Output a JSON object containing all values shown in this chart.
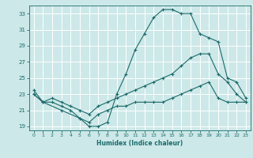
{
  "xlabel": "Humidex (Indice chaleur)",
  "xlim": [
    -0.5,
    23.5
  ],
  "ylim": [
    18.5,
    34.0
  ],
  "yticks": [
    19,
    21,
    23,
    25,
    27,
    29,
    31,
    33
  ],
  "xticks": [
    0,
    1,
    2,
    3,
    4,
    5,
    6,
    7,
    8,
    9,
    10,
    11,
    12,
    13,
    14,
    15,
    16,
    17,
    18,
    19,
    20,
    21,
    22,
    23
  ],
  "bg_color": "#cde8e8",
  "grid_color": "#b0d0d0",
  "line_color": "#1a6b6b",
  "line1_x": [
    0,
    1,
    3,
    5,
    6,
    7,
    8,
    9,
    10,
    11,
    12,
    13,
    14,
    15,
    16,
    17,
    18,
    19,
    20,
    21,
    22,
    23
  ],
  "line1_y": [
    23.5,
    22.0,
    21.0,
    20.0,
    19.0,
    19.0,
    19.5,
    23.0,
    25.5,
    28.5,
    30.5,
    32.5,
    33.5,
    33.5,
    33.0,
    33.0,
    30.5,
    30.0,
    29.5,
    25.0,
    24.5,
    22.5
  ],
  "line2_x": [
    0,
    1,
    2,
    3,
    4,
    5,
    6,
    7,
    8,
    9,
    10,
    11,
    12,
    13,
    14,
    15,
    16,
    17,
    18,
    19,
    20,
    21,
    22,
    23
  ],
  "line2_y": [
    23.0,
    22.0,
    22.5,
    22.0,
    21.5,
    21.0,
    20.5,
    21.5,
    22.0,
    22.5,
    23.0,
    23.5,
    24.0,
    24.5,
    25.0,
    25.5,
    26.5,
    27.5,
    28.0,
    28.0,
    25.5,
    24.5,
    23.0,
    22.0
  ],
  "line3_x": [
    0,
    1,
    2,
    3,
    4,
    5,
    6,
    7,
    8,
    9,
    10,
    11,
    12,
    13,
    14,
    15,
    16,
    17,
    18,
    19,
    20,
    21,
    22,
    23
  ],
  "line3_y": [
    23.0,
    22.0,
    22.0,
    21.5,
    21.0,
    20.0,
    19.5,
    20.5,
    21.0,
    21.5,
    21.5,
    22.0,
    22.0,
    22.0,
    22.0,
    22.5,
    23.0,
    23.5,
    24.0,
    24.5,
    22.5,
    22.0,
    22.0,
    22.0
  ]
}
